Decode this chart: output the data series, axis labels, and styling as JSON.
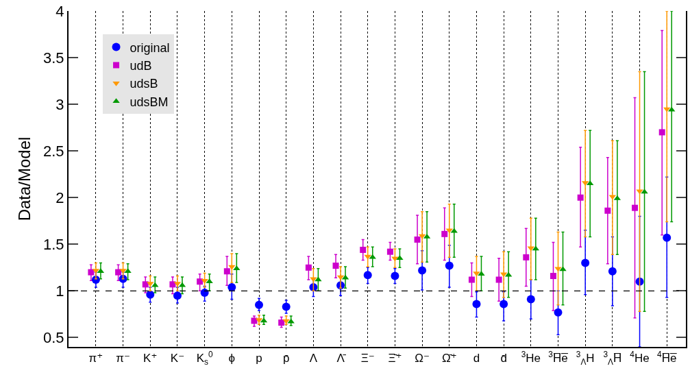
{
  "chart_data": {
    "type": "scatter",
    "ylabel": "Data/Model",
    "categories": [
      "π⁺",
      "π⁻",
      "K⁺",
      "K⁻",
      "K$_{s}$$^{0}$",
      "ϕ",
      "p",
      "p̄",
      "Λ",
      "Λ̄",
      "Ξ⁻",
      "Ξ̄⁺",
      "Ω⁻",
      "Ω̄⁺",
      "d",
      "d̄",
      "$^{3}$He",
      "$^{3}$H̅e̅",
      "$^{3}$$_{Λ}$H",
      "$^{3}$$_{Λ}$H̅",
      "$^{4}$He",
      "$^{4}$H̅e̅"
    ],
    "ylim": [
      0.4,
      4
    ],
    "yticks": [
      0.5,
      1,
      1.5,
      2,
      2.5,
      3,
      3.5,
      4
    ],
    "grid": "x",
    "legend": "top left",
    "ref_lines": [
      {
        "axis": "y",
        "value": 1,
        "line_style": "dashed",
        "color": "#000000"
      }
    ],
    "series": [
      {
        "name": "original",
        "color": "#0000ff",
        "marker": "circle",
        "values": [
          1.12,
          1.13,
          0.96,
          0.95,
          0.98,
          1.04,
          0.85,
          0.83,
          1.04,
          1.06,
          1.17,
          1.16,
          1.22,
          1.27,
          0.86,
          0.86,
          0.91,
          0.77,
          1.3,
          1.21,
          1.1,
          1.57
        ],
        "errors": [
          [
            1.04,
            1.2
          ],
          [
            1.04,
            1.2
          ],
          [
            0.88,
            1.04
          ],
          [
            0.87,
            1.04
          ],
          [
            0.89,
            1.05
          ],
          [
            0.91,
            1.18
          ],
          [
            0.79,
            0.92
          ],
          [
            0.76,
            0.9
          ],
          [
            0.94,
            1.12
          ],
          [
            0.95,
            1.14
          ],
          [
            1.08,
            1.25
          ],
          [
            1.08,
            1.24
          ],
          [
            1.01,
            1.43
          ],
          [
            1.04,
            1.49
          ],
          [
            0.72,
            0.99
          ],
          [
            0.68,
            0.99
          ],
          [
            0.7,
            1.12
          ],
          [
            0.53,
            1.0
          ],
          [
            0.96,
            1.65
          ],
          [
            0.84,
            1.58
          ],
          [
            0.4,
            1.8
          ],
          [
            0.93,
            2.22
          ]
        ]
      },
      {
        "name": "udB",
        "color": "#cc00cc",
        "marker": "square",
        "values": [
          1.2,
          1.2,
          1.07,
          1.07,
          1.1,
          1.21,
          0.68,
          0.66,
          1.25,
          1.27,
          1.44,
          1.42,
          1.55,
          1.61,
          1.12,
          1.12,
          1.36,
          1.16,
          2.0,
          1.86,
          1.89,
          2.7
        ],
        "errors": [
          [
            1.11,
            1.28
          ],
          [
            1.11,
            1.28
          ],
          [
            0.98,
            1.15
          ],
          [
            0.97,
            1.15
          ],
          [
            1.0,
            1.18
          ],
          [
            1.06,
            1.37
          ],
          [
            0.62,
            0.73
          ],
          [
            0.61,
            0.72
          ],
          [
            1.12,
            1.37
          ],
          [
            1.14,
            1.39
          ],
          [
            1.33,
            1.55
          ],
          [
            1.33,
            1.52
          ],
          [
            1.29,
            1.81
          ],
          [
            1.33,
            1.89
          ],
          [
            0.94,
            1.3
          ],
          [
            0.89,
            1.35
          ],
          [
            1.05,
            1.67
          ],
          [
            0.79,
            1.52
          ],
          [
            1.47,
            2.54
          ],
          [
            1.29,
            2.43
          ],
          [
            0.71,
            3.07
          ],
          [
            1.6,
            3.79
          ]
        ]
      },
      {
        "name": "udsB",
        "color": "#ff9900",
        "marker": "triangle-down",
        "values": [
          1.22,
          1.22,
          1.08,
          1.08,
          1.11,
          1.26,
          0.69,
          0.68,
          1.13,
          1.15,
          1.37,
          1.35,
          1.59,
          1.65,
          1.19,
          1.18,
          1.46,
          1.24,
          2.16,
          2.01,
          2.07,
          2.95
        ],
        "errors": [
          [
            1.13,
            1.3
          ],
          [
            1.13,
            1.3
          ],
          [
            1.0,
            1.16
          ],
          [
            1.0,
            1.16
          ],
          [
            1.04,
            1.19
          ],
          [
            1.09,
            1.4
          ],
          [
            0.64,
            0.74
          ],
          [
            0.64,
            0.73
          ],
          [
            1.0,
            1.24
          ],
          [
            1.03,
            1.26
          ],
          [
            1.26,
            1.47
          ],
          [
            1.25,
            1.45
          ],
          [
            1.31,
            1.85
          ],
          [
            1.36,
            1.93
          ],
          [
            1.0,
            1.37
          ],
          [
            0.93,
            1.42
          ],
          [
            1.12,
            1.78
          ],
          [
            0.85,
            1.63
          ],
          [
            1.58,
            2.72
          ],
          [
            1.39,
            2.61
          ],
          [
            0.78,
            3.35
          ],
          [
            1.74,
            4.0
          ]
        ]
      },
      {
        "name": "udsBM",
        "color": "#009900",
        "marker": "triangle",
        "values": [
          1.21,
          1.21,
          1.06,
          1.06,
          1.1,
          1.24,
          0.68,
          0.67,
          1.12,
          1.14,
          1.36,
          1.35,
          1.58,
          1.64,
          1.18,
          1.17,
          1.45,
          1.23,
          2.15,
          1.99,
          2.06,
          2.94
        ],
        "errors": [
          [
            1.13,
            1.3
          ],
          [
            1.12,
            1.29
          ],
          [
            0.98,
            1.15
          ],
          [
            0.97,
            1.15
          ],
          [
            1.0,
            1.18
          ],
          [
            1.09,
            1.4
          ],
          [
            0.64,
            0.74
          ],
          [
            0.63,
            0.73
          ],
          [
            1.0,
            1.24
          ],
          [
            1.03,
            1.26
          ],
          [
            1.26,
            1.47
          ],
          [
            1.25,
            1.45
          ],
          [
            1.31,
            1.85
          ],
          [
            1.36,
            1.93
          ],
          [
            1.0,
            1.37
          ],
          [
            0.93,
            1.42
          ],
          [
            1.12,
            1.78
          ],
          [
            0.85,
            1.63
          ],
          [
            1.58,
            2.72
          ],
          [
            1.39,
            2.61
          ],
          [
            0.78,
            3.35
          ],
          [
            1.74,
            4.0
          ]
        ]
      }
    ]
  }
}
